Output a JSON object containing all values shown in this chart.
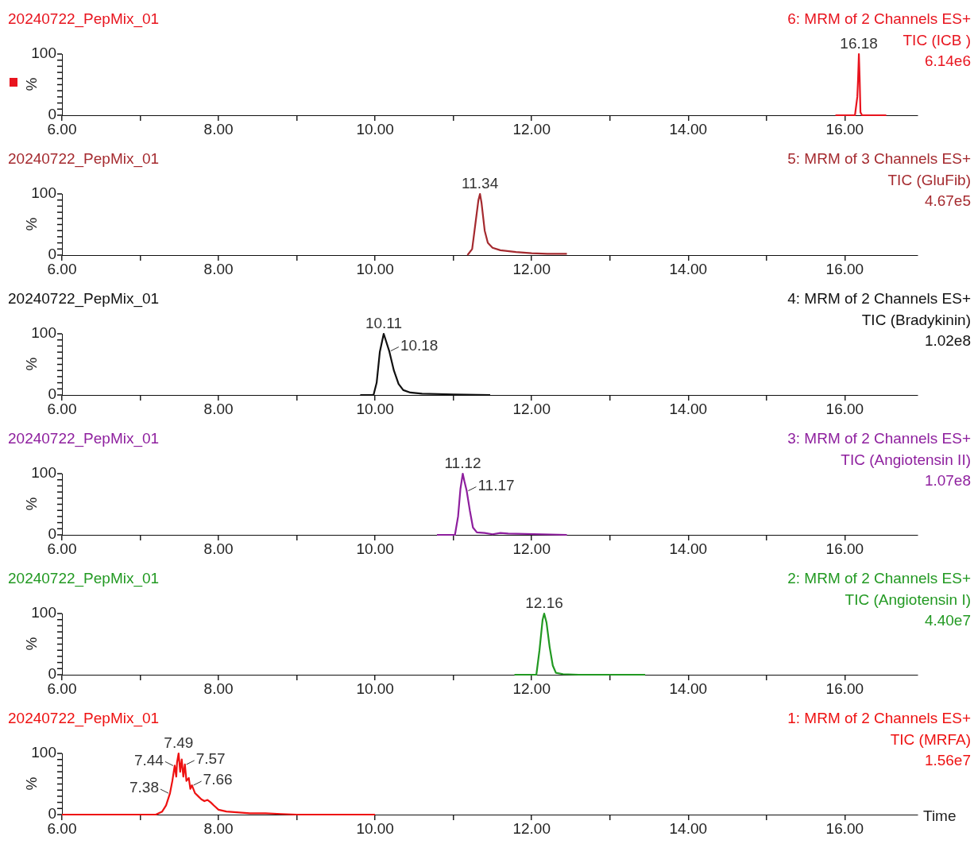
{
  "chart_data": [
    {
      "type": "line",
      "title": "20240722_PepMix_01",
      "annotations": [
        "6: MRM of 2 Channels ES+",
        "TIC (ICB )",
        "6.14e6",
        {
          "text": "16.18",
          "x": 16.18,
          "y": 100
        }
      ],
      "ylabel": "%",
      "series": [
        {
          "color": "#e8141e",
          "x": [
            15.88,
            16.13,
            16.16,
            16.17,
            16.18,
            16.19,
            16.2,
            16.22,
            16.53
          ],
          "values": [
            0,
            0,
            30,
            60,
            100,
            60,
            5,
            0,
            0
          ]
        }
      ],
      "xlim": [
        6,
        16.93
      ],
      "ylim": [
        0,
        100
      ],
      "xticks": [
        {
          "value": 6,
          "label": "6.00"
        },
        {
          "value": 7,
          "label": null
        },
        {
          "value": 8,
          "label": "8.00"
        },
        {
          "value": 9,
          "label": null
        },
        {
          "value": 10,
          "label": "10.00"
        },
        {
          "value": 11,
          "label": null
        },
        {
          "value": 12,
          "label": "12.00"
        },
        {
          "value": 13,
          "label": null
        },
        {
          "value": 14,
          "label": "14.00"
        },
        {
          "value": 15,
          "label": null
        },
        {
          "value": 16,
          "label": "16.00"
        }
      ],
      "yticks": [
        {
          "value": 0,
          "label": "0"
        },
        {
          "value": 10,
          "label": null
        },
        {
          "value": 20,
          "label": null
        },
        {
          "value": 30,
          "label": null
        },
        {
          "value": 40,
          "label": null
        },
        {
          "value": 50,
          "label": null
        },
        {
          "value": 60,
          "label": null
        },
        {
          "value": 70,
          "label": null
        },
        {
          "value": 80,
          "label": null
        },
        {
          "value": 90,
          "label": null
        },
        {
          "value": 100,
          "label": "100"
        }
      ],
      "grid": false,
      "legend": false,
      "marker": "none",
      "line_style": "solid"
    },
    {
      "type": "line",
      "title": "20240722_PepMix_01",
      "annotations": [
        "5: MRM of 3 Channels ES+",
        "TIC (GluFib)",
        "4.67e5",
        {
          "text": "11.34",
          "x": 11.34,
          "y": 100
        }
      ],
      "ylabel": "%",
      "series": [
        {
          "color": "#a52a2f",
          "x": [
            11.18,
            11.24,
            11.28,
            11.32,
            11.34,
            11.36,
            11.4,
            11.44,
            11.5,
            11.6,
            11.8,
            12.0,
            12.2,
            12.45
          ],
          "values": [
            0,
            10,
            50,
            90,
            100,
            85,
            40,
            20,
            12,
            8,
            5,
            3,
            2,
            2
          ]
        }
      ],
      "xlim": [
        6,
        16.93
      ],
      "ylim": [
        0,
        100
      ],
      "xticks": [
        {
          "value": 6,
          "label": "6.00"
        },
        {
          "value": 7,
          "label": null
        },
        {
          "value": 8,
          "label": "8.00"
        },
        {
          "value": 9,
          "label": null
        },
        {
          "value": 10,
          "label": "10.00"
        },
        {
          "value": 11,
          "label": null
        },
        {
          "value": 12,
          "label": "12.00"
        },
        {
          "value": 13,
          "label": null
        },
        {
          "value": 14,
          "label": "14.00"
        },
        {
          "value": 15,
          "label": null
        },
        {
          "value": 16,
          "label": "16.00"
        }
      ],
      "yticks": [
        {
          "value": 0,
          "label": "0"
        },
        {
          "value": 10,
          "label": null
        },
        {
          "value": 20,
          "label": null
        },
        {
          "value": 30,
          "label": null
        },
        {
          "value": 40,
          "label": null
        },
        {
          "value": 50,
          "label": null
        },
        {
          "value": 60,
          "label": null
        },
        {
          "value": 70,
          "label": null
        },
        {
          "value": 80,
          "label": null
        },
        {
          "value": 90,
          "label": null
        },
        {
          "value": 100,
          "label": "100"
        }
      ],
      "grid": false,
      "legend": false,
      "marker": "none",
      "line_style": "solid"
    },
    {
      "type": "line",
      "title": "20240722_PepMix_01",
      "annotations": [
        "4: MRM of 2 Channels ES+",
        "TIC (Bradykinin)",
        "1.02e8",
        {
          "text": "10.11",
          "x": 10.11,
          "y": 100
        },
        {
          "text": "10.18",
          "x": 10.18,
          "y": 72
        }
      ],
      "ylabel": "%",
      "series": [
        {
          "color": "#111111",
          "x": [
            9.81,
            9.98,
            10.02,
            10.06,
            10.11,
            10.14,
            10.18,
            10.24,
            10.3,
            10.36,
            10.45,
            10.6,
            11.0,
            11.47
          ],
          "values": [
            0,
            0,
            20,
            70,
            100,
            88,
            72,
            40,
            18,
            8,
            4,
            2,
            1,
            0
          ]
        }
      ],
      "xlim": [
        6,
        16.93
      ],
      "ylim": [
        0,
        100
      ],
      "xticks": [
        {
          "value": 6,
          "label": "6.00"
        },
        {
          "value": 7,
          "label": null
        },
        {
          "value": 8,
          "label": "8.00"
        },
        {
          "value": 9,
          "label": null
        },
        {
          "value": 10,
          "label": "10.00"
        },
        {
          "value": 11,
          "label": null
        },
        {
          "value": 12,
          "label": "12.00"
        },
        {
          "value": 13,
          "label": null
        },
        {
          "value": 14,
          "label": "14.00"
        },
        {
          "value": 15,
          "label": null
        },
        {
          "value": 16,
          "label": "16.00"
        }
      ],
      "yticks": [
        {
          "value": 0,
          "label": "0"
        },
        {
          "value": 10,
          "label": null
        },
        {
          "value": 20,
          "label": null
        },
        {
          "value": 30,
          "label": null
        },
        {
          "value": 40,
          "label": null
        },
        {
          "value": 50,
          "label": null
        },
        {
          "value": 60,
          "label": null
        },
        {
          "value": 70,
          "label": null
        },
        {
          "value": 80,
          "label": null
        },
        {
          "value": 90,
          "label": null
        },
        {
          "value": 100,
          "label": "100"
        }
      ],
      "grid": false,
      "legend": false,
      "marker": "none",
      "line_style": "solid"
    },
    {
      "type": "line",
      "title": "20240722_PepMix_01",
      "annotations": [
        "3: MRM of 2 Channels ES+",
        "TIC (Angiotensin II)",
        "1.07e8",
        {
          "text": "11.12",
          "x": 11.12,
          "y": 100
        },
        {
          "text": "11.17",
          "x": 11.17,
          "y": 72
        }
      ],
      "ylabel": "%",
      "series": [
        {
          "color": "#8e1f9e",
          "x": [
            10.79,
            11.02,
            11.06,
            11.09,
            11.12,
            11.14,
            11.17,
            11.21,
            11.25,
            11.3,
            11.4,
            11.5,
            11.6,
            11.7,
            12.45
          ],
          "values": [
            0,
            0,
            30,
            75,
            100,
            88,
            72,
            40,
            12,
            4,
            3,
            1,
            3,
            2,
            0
          ]
        }
      ],
      "xlim": [
        6,
        16.93
      ],
      "ylim": [
        0,
        100
      ],
      "xticks": [
        {
          "value": 6,
          "label": "6.00"
        },
        {
          "value": 7,
          "label": null
        },
        {
          "value": 8,
          "label": "8.00"
        },
        {
          "value": 9,
          "label": null
        },
        {
          "value": 10,
          "label": "10.00"
        },
        {
          "value": 11,
          "label": null
        },
        {
          "value": 12,
          "label": "12.00"
        },
        {
          "value": 13,
          "label": null
        },
        {
          "value": 14,
          "label": "14.00"
        },
        {
          "value": 15,
          "label": null
        },
        {
          "value": 16,
          "label": "16.00"
        }
      ],
      "yticks": [
        {
          "value": 0,
          "label": "0"
        },
        {
          "value": 10,
          "label": null
        },
        {
          "value": 20,
          "label": null
        },
        {
          "value": 30,
          "label": null
        },
        {
          "value": 40,
          "label": null
        },
        {
          "value": 50,
          "label": null
        },
        {
          "value": 60,
          "label": null
        },
        {
          "value": 70,
          "label": null
        },
        {
          "value": 80,
          "label": null
        },
        {
          "value": 90,
          "label": null
        },
        {
          "value": 100,
          "label": "100"
        }
      ],
      "grid": false,
      "legend": false,
      "marker": "none",
      "line_style": "solid"
    },
    {
      "type": "line",
      "title": "20240722_PepMix_01",
      "annotations": [
        "2: MRM of 2 Channels ES+",
        "TIC (Angiotensin I)",
        "4.40e7",
        {
          "text": "12.16",
          "x": 12.16,
          "y": 100
        }
      ],
      "ylabel": "%",
      "series": [
        {
          "color": "#229922",
          "x": [
            11.78,
            12.06,
            12.1,
            12.14,
            12.16,
            12.19,
            12.23,
            12.27,
            12.31,
            12.4,
            12.6,
            13.45
          ],
          "values": [
            0,
            0,
            40,
            90,
            100,
            85,
            45,
            15,
            3,
            1,
            0,
            0
          ]
        }
      ],
      "xlim": [
        6,
        16.93
      ],
      "ylim": [
        0,
        100
      ],
      "xticks": [
        {
          "value": 6,
          "label": "6.00"
        },
        {
          "value": 7,
          "label": null
        },
        {
          "value": 8,
          "label": "8.00"
        },
        {
          "value": 9,
          "label": null
        },
        {
          "value": 10,
          "label": "10.00"
        },
        {
          "value": 11,
          "label": null
        },
        {
          "value": 12,
          "label": "12.00"
        },
        {
          "value": 13,
          "label": null
        },
        {
          "value": 14,
          "label": "14.00"
        },
        {
          "value": 15,
          "label": null
        },
        {
          "value": 16,
          "label": "16.00"
        }
      ],
      "yticks": [
        {
          "value": 0,
          "label": "0"
        },
        {
          "value": 10,
          "label": null
        },
        {
          "value": 20,
          "label": null
        },
        {
          "value": 30,
          "label": null
        },
        {
          "value": 40,
          "label": null
        },
        {
          "value": 50,
          "label": null
        },
        {
          "value": 60,
          "label": null
        },
        {
          "value": 70,
          "label": null
        },
        {
          "value": 80,
          "label": null
        },
        {
          "value": 90,
          "label": null
        },
        {
          "value": 100,
          "label": "100"
        }
      ],
      "grid": false,
      "legend": false,
      "marker": "none",
      "line_style": "solid"
    },
    {
      "type": "line",
      "title": "20240722_PepMix_01",
      "annotations": [
        "1: MRM of 2 Channels ES+",
        "TIC (MRFA)",
        "1.56e7",
        {
          "text": "7.38",
          "x": 7.38,
          "y": 35
        },
        {
          "text": "7.44",
          "x": 7.44,
          "y": 80
        },
        {
          "text": "7.49",
          "x": 7.49,
          "y": 100
        },
        {
          "text": "7.57",
          "x": 7.57,
          "y": 82
        },
        {
          "text": "7.66",
          "x": 7.66,
          "y": 48
        }
      ],
      "ylabel": "%",
      "xlabel": "Time",
      "series": [
        {
          "color": "#ee1111",
          "x": [
            6.0,
            7.2,
            7.28,
            7.33,
            7.38,
            7.41,
            7.44,
            7.46,
            7.47,
            7.49,
            7.51,
            7.53,
            7.55,
            7.57,
            7.59,
            7.62,
            7.64,
            7.66,
            7.7,
            7.74,
            7.78,
            7.82,
            7.86,
            7.9,
            7.94,
            8.0,
            8.1,
            8.2,
            8.4,
            8.6,
            8.8,
            9.0,
            10.0
          ],
          "values": [
            0,
            0,
            5,
            15,
            35,
            55,
            80,
            62,
            85,
            100,
            70,
            90,
            62,
            82,
            55,
            60,
            42,
            48,
            35,
            30,
            25,
            22,
            24,
            20,
            15,
            8,
            5,
            4,
            2,
            2,
            1,
            0,
            0
          ]
        }
      ],
      "xlim": [
        6,
        16.93
      ],
      "ylim": [
        0,
        100
      ],
      "xticks": [
        {
          "value": 6,
          "label": "6.00"
        },
        {
          "value": 7,
          "label": null
        },
        {
          "value": 8,
          "label": "8.00"
        },
        {
          "value": 9,
          "label": null
        },
        {
          "value": 10,
          "label": "10.00"
        },
        {
          "value": 11,
          "label": null
        },
        {
          "value": 12,
          "label": "12.00"
        },
        {
          "value": 13,
          "label": null
        },
        {
          "value": 14,
          "label": "14.00"
        },
        {
          "value": 15,
          "label": null
        },
        {
          "value": 16,
          "label": "16.00"
        }
      ],
      "yticks": [
        {
          "value": 0,
          "label": "0"
        },
        {
          "value": 10,
          "label": null
        },
        {
          "value": 20,
          "label": null
        },
        {
          "value": 30,
          "label": null
        },
        {
          "value": 40,
          "label": null
        },
        {
          "value": 50,
          "label": null
        },
        {
          "value": 60,
          "label": null
        },
        {
          "value": 70,
          "label": null
        },
        {
          "value": 80,
          "label": null
        },
        {
          "value": 90,
          "label": null
        },
        {
          "value": 100,
          "label": "100"
        }
      ],
      "grid": false,
      "legend": false,
      "marker": "none",
      "line_style": "solid"
    }
  ]
}
